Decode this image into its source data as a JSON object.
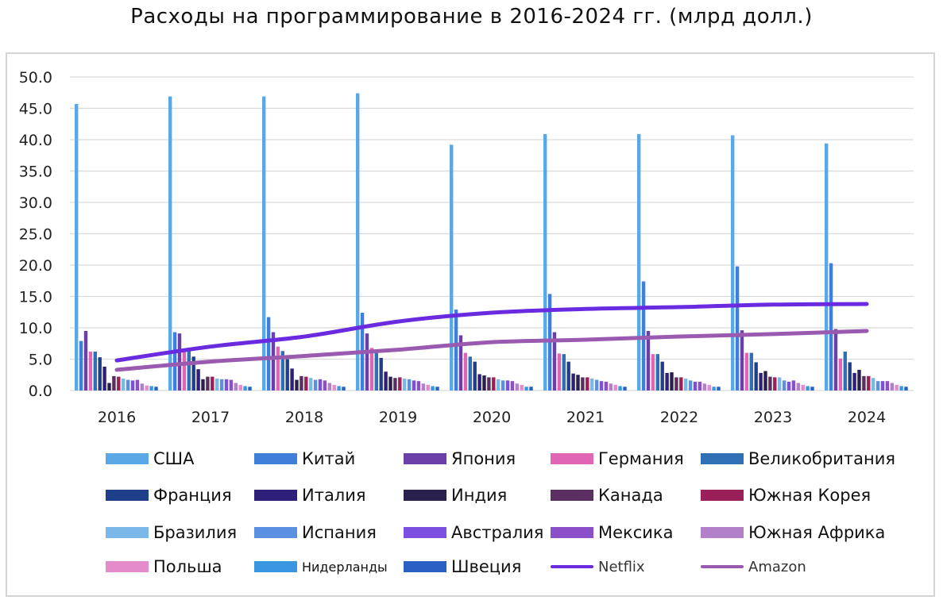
{
  "chart_data": {
    "type": "bar",
    "title": "Расходы на программирование в 2016-2024 гг. (млрд долл.)",
    "xlabel": "",
    "ylabel": "",
    "ylim": [
      0,
      50
    ],
    "yticks": [
      "0.0",
      "5.0",
      "10.0",
      "15.0",
      "20.0",
      "25.0",
      "30.0",
      "35.0",
      "40.0",
      "45.0",
      "50.0"
    ],
    "grid": true,
    "legend_position": "bottom",
    "categories": [
      "2016",
      "2017",
      "2018",
      "2019",
      "2020",
      "2021",
      "2022",
      "2023",
      "2024"
    ],
    "series": [
      {
        "name": "США",
        "type": "bar",
        "color": "#5aa9e6",
        "values": [
          45.7,
          46.9,
          46.9,
          47.4,
          39.2,
          40.9,
          40.9,
          40.7,
          39.4
        ]
      },
      {
        "name": "Китай",
        "type": "bar",
        "color": "#3f7fd9",
        "values": [
          7.9,
          9.3,
          11.7,
          12.4,
          12.9,
          15.4,
          17.4,
          19.8,
          20.3
        ]
      },
      {
        "name": "Япония",
        "type": "bar",
        "color": "#6a3fa8",
        "values": [
          9.5,
          9.1,
          9.3,
          9.1,
          8.8,
          9.3,
          9.5,
          9.6,
          9.8
        ]
      },
      {
        "name": "Германия",
        "type": "bar",
        "color": "#e065b5",
        "values": [
          6.2,
          6.5,
          7.0,
          6.8,
          6.0,
          5.9,
          5.8,
          6.0,
          5.1
        ]
      },
      {
        "name": "Великобритания",
        "type": "bar",
        "color": "#2f6fb5",
        "values": [
          6.2,
          6.3,
          6.3,
          6.2,
          5.4,
          5.8,
          5.8,
          6.0,
          6.2
        ]
      },
      {
        "name": "Франция",
        "type": "bar",
        "color": "#1f3f8a",
        "values": [
          5.3,
          5.4,
          5.0,
          5.2,
          4.6,
          4.6,
          4.6,
          4.5,
          4.5
        ]
      },
      {
        "name": "Италия",
        "type": "bar",
        "color": "#2e1f7a",
        "values": [
          3.8,
          3.4,
          3.5,
          3.0,
          2.6,
          2.7,
          2.8,
          2.8,
          2.8
        ]
      },
      {
        "name": "Индия",
        "type": "bar",
        "color": "#2a1f4f",
        "values": [
          1.2,
          1.8,
          1.7,
          2.2,
          2.4,
          2.5,
          2.9,
          3.1,
          3.3
        ]
      },
      {
        "name": "Канада",
        "type": "bar",
        "color": "#5a2f5f",
        "values": [
          2.3,
          2.2,
          2.3,
          2.0,
          2.1,
          2.1,
          2.1,
          2.2,
          2.3
        ]
      },
      {
        "name": "Южная Корея",
        "type": "bar",
        "color": "#9a1f5a",
        "values": [
          2.2,
          2.2,
          2.2,
          2.1,
          2.1,
          2.1,
          2.1,
          2.1,
          2.3
        ]
      },
      {
        "name": "Бразилия",
        "type": "bar",
        "color": "#7ab8ea",
        "values": [
          1.9,
          1.9,
          2.0,
          1.9,
          1.8,
          1.9,
          1.9,
          2.1,
          2.0
        ]
      },
      {
        "name": "Испания",
        "type": "bar",
        "color": "#5b8fe0",
        "values": [
          1.7,
          1.8,
          1.7,
          1.8,
          1.6,
          1.7,
          1.6,
          1.6,
          1.5
        ]
      },
      {
        "name": "Австралия",
        "type": "bar",
        "color": "#7b4fe0",
        "values": [
          1.6,
          1.8,
          1.8,
          1.6,
          1.6,
          1.5,
          1.4,
          1.4,
          1.5
        ]
      },
      {
        "name": "Мексика",
        "type": "bar",
        "color": "#8a4fc9",
        "values": [
          1.7,
          1.7,
          1.6,
          1.5,
          1.5,
          1.4,
          1.4,
          1.6,
          1.5
        ]
      },
      {
        "name": "Южная Африка",
        "type": "bar",
        "color": "#b27fc9",
        "values": [
          1.1,
          1.2,
          1.2,
          1.1,
          1.1,
          1.1,
          1.1,
          1.2,
          1.2
        ]
      },
      {
        "name": "Польша",
        "type": "bar",
        "color": "#e38bcb",
        "values": [
          0.8,
          0.9,
          0.9,
          0.9,
          0.9,
          0.9,
          0.9,
          0.9,
          0.9
        ]
      },
      {
        "name": "Нидерланды",
        "type": "bar",
        "color": "#3a96e0",
        "values": [
          0.7,
          0.7,
          0.7,
          0.7,
          0.6,
          0.7,
          0.6,
          0.7,
          0.7
        ]
      },
      {
        "name": "Швеция",
        "type": "bar",
        "color": "#2a5fc4",
        "values": [
          0.6,
          0.6,
          0.6,
          0.6,
          0.6,
          0.6,
          0.6,
          0.6,
          0.6
        ]
      },
      {
        "name": "Netflix",
        "type": "line",
        "color": "#6a2be0",
        "values": [
          4.8,
          7.0,
          8.6,
          11.0,
          12.4,
          13.0,
          13.3,
          13.7,
          13.8
        ]
      },
      {
        "name": "Amazon",
        "type": "line",
        "color": "#9a5ab0",
        "values": [
          3.3,
          4.6,
          5.5,
          6.5,
          7.7,
          8.1,
          8.6,
          9.0,
          9.5
        ]
      }
    ]
  }
}
